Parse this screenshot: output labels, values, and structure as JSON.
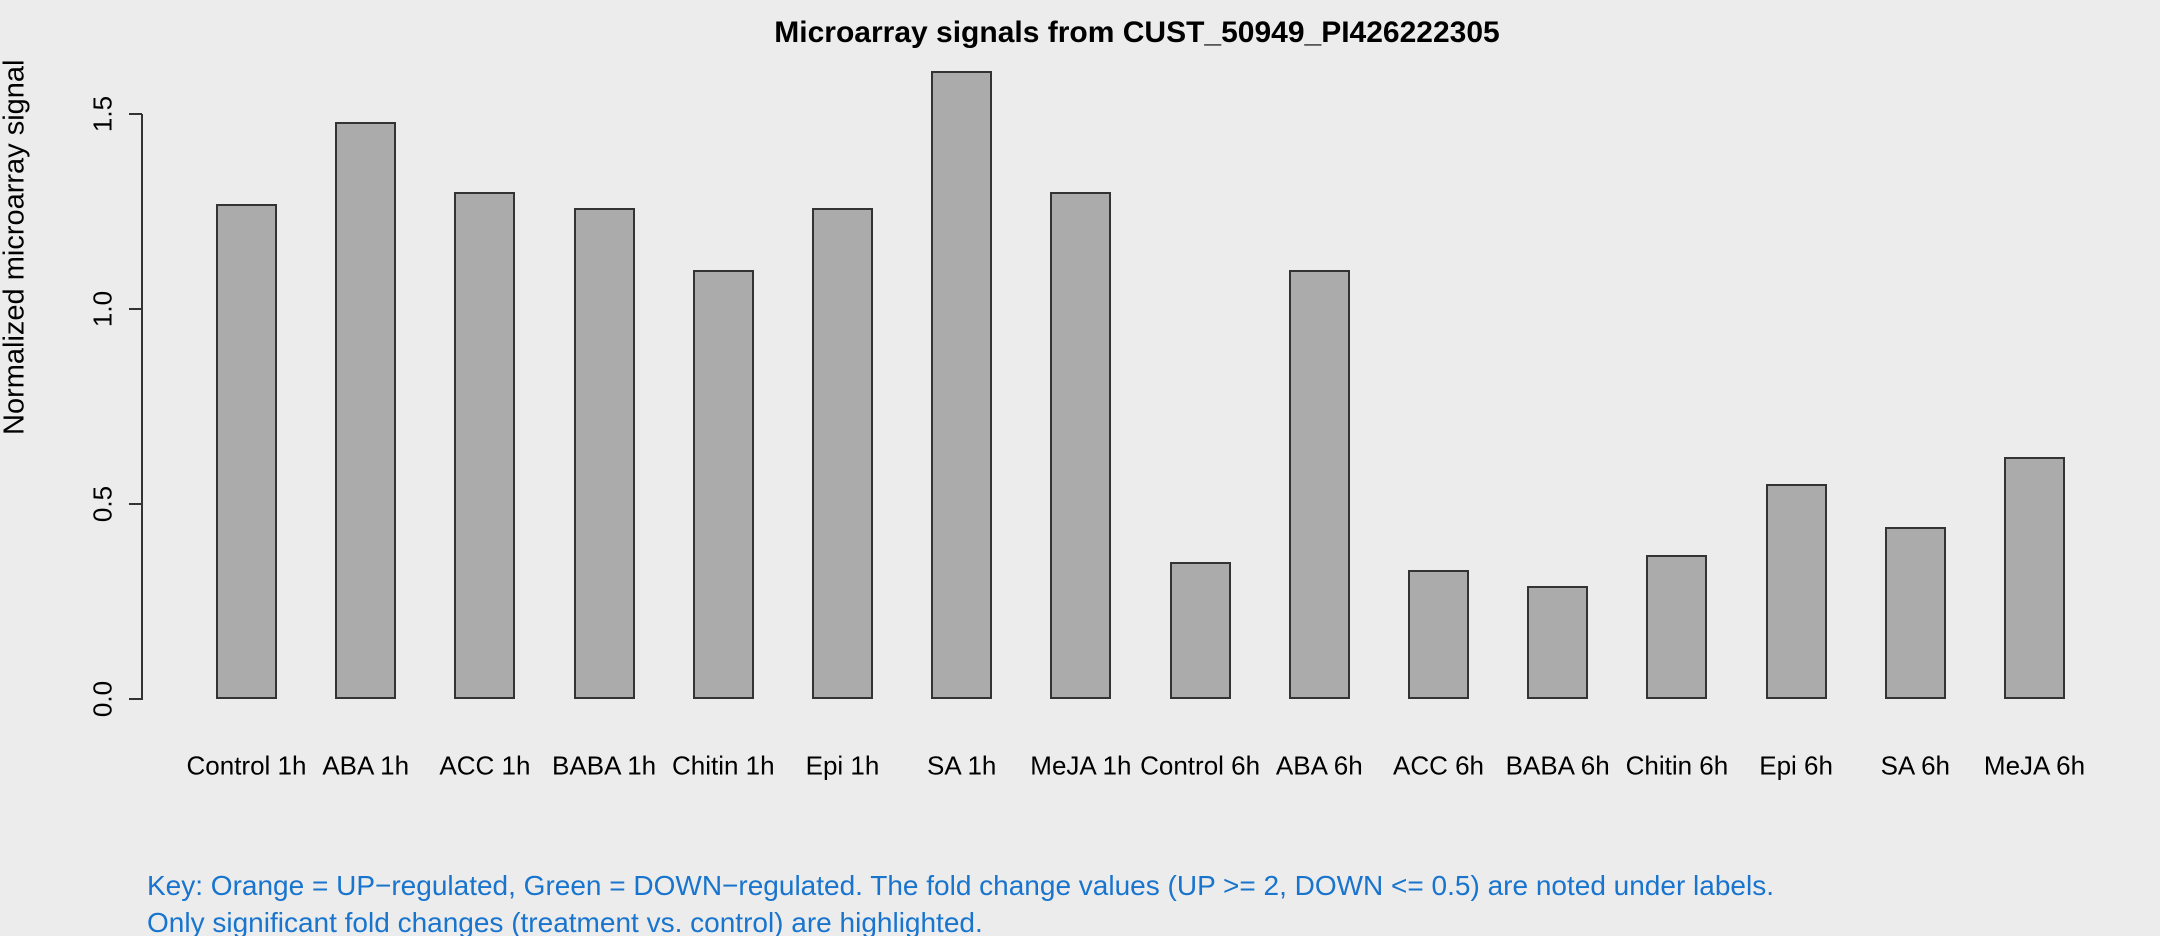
{
  "chart_data": {
    "type": "bar",
    "title": "Microarray signals from CUST_50949_PI426222305",
    "ylabel": "Normalized microarray signal",
    "xlabel": "",
    "categories": [
      "Control 1h",
      "ABA 1h",
      "ACC 1h",
      "BABA 1h",
      "Chitin 1h",
      "Epi 1h",
      "SA 1h",
      "MeJA 1h",
      "Control 6h",
      "ABA 6h",
      "ACC 6h",
      "BABA 6h",
      "Chitin 6h",
      "Epi 6h",
      "SA 6h",
      "MeJA 6h"
    ],
    "values": [
      1.27,
      1.48,
      1.3,
      1.26,
      1.1,
      1.26,
      1.61,
      1.3,
      0.35,
      1.1,
      0.33,
      0.29,
      0.37,
      0.55,
      0.44,
      0.62
    ],
    "ylim": [
      0,
      1.62
    ],
    "yticks": [
      0,
      0.5,
      1,
      1.5
    ],
    "ytick_labels": [
      "0.0",
      "0.5",
      "1.0",
      "1.5"
    ],
    "grid": false,
    "legend": "none",
    "colors": {
      "background": "#ececec",
      "bar_fill": "#ababab",
      "bar_border": "#333333",
      "axis": "#333333",
      "key_text": "#1874cd"
    }
  },
  "footnote": {
    "line1": "Key: Orange = UP−regulated, Green = DOWN−regulated. The fold change values (UP >= 2, DOWN <= 0.5) are noted under labels.",
    "line2": "Only significant fold changes (treatment vs. control) are highlighted."
  }
}
